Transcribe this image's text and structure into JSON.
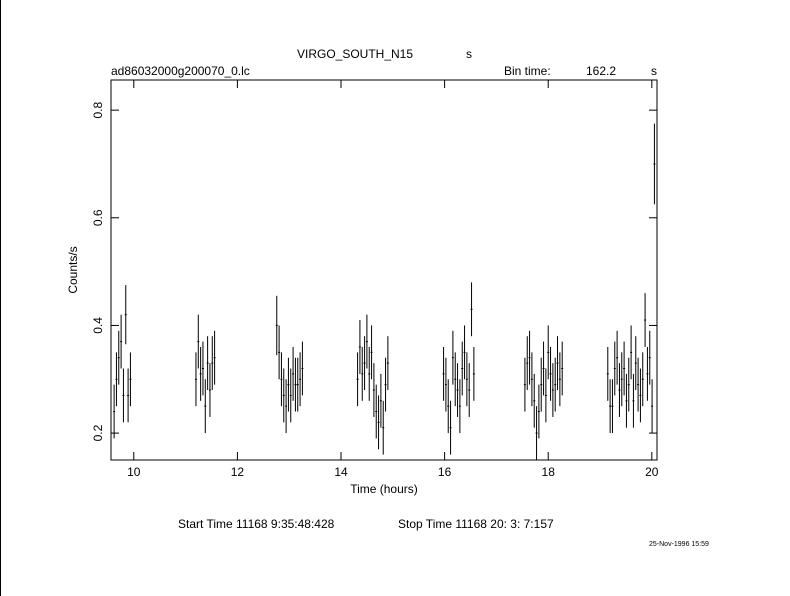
{
  "chart_data": {
    "type": "errorbar",
    "title": "VIRGO_SOUTH_N15",
    "title_unit": "s",
    "file": "ad86032000g200070_0.lc",
    "bin_time_label": "Bin time:",
    "bin_time": 162.2,
    "bin_time_unit": "s",
    "xlabel": "Time (hours)",
    "ylabel": "Counts/s",
    "start_time": "Start Time 11168  9:35:48:428",
    "stop_time": "Stop Time 11168 20: 3: 7:157",
    "date": "25-Nov-1996 15:59",
    "xlim": [
      9.56,
      20.1
    ],
    "ylim": [
      0.15,
      0.856
    ],
    "xticks": [
      10,
      12,
      14,
      16,
      18,
      20
    ],
    "yticks": [
      0.2,
      0.4,
      0.6,
      0.8
    ],
    "series": [
      {
        "color": "#000000",
        "x": [
          9.62,
          9.665,
          9.71,
          9.755,
          9.8,
          9.845,
          9.89,
          9.935,
          11.2,
          11.245,
          11.29,
          11.335,
          11.38,
          11.425,
          11.47,
          11.515,
          11.56,
          12.76,
          12.805,
          12.85,
          12.895,
          12.94,
          12.985,
          13.03,
          13.075,
          13.12,
          13.165,
          13.21,
          13.255,
          14.32,
          14.365,
          14.41,
          14.455,
          14.5,
          14.545,
          14.59,
          14.635,
          14.68,
          14.725,
          14.77,
          14.815,
          14.86,
          14.905,
          15.98,
          16.025,
          16.07,
          16.115,
          16.16,
          16.205,
          16.25,
          16.295,
          16.34,
          16.385,
          16.43,
          16.475,
          16.52,
          16.565,
          17.55,
          17.595,
          17.64,
          17.685,
          17.73,
          17.775,
          17.82,
          17.865,
          17.91,
          17.955,
          18.0,
          18.045,
          18.09,
          18.135,
          18.18,
          18.225,
          18.27,
          19.15,
          19.195,
          19.24,
          19.285,
          19.33,
          19.375,
          19.42,
          19.465,
          19.51,
          19.555,
          19.6,
          19.645,
          19.69,
          19.735,
          19.78,
          19.825,
          19.87,
          19.915,
          19.96,
          20.005,
          20.05
        ],
        "values": [
          0.24,
          0.3,
          0.34,
          0.37,
          0.27,
          0.42,
          0.27,
          0.3,
          0.3,
          0.37,
          0.31,
          0.32,
          0.25,
          0.33,
          0.28,
          0.33,
          0.34,
          0.4,
          0.35,
          0.3,
          0.27,
          0.25,
          0.29,
          0.27,
          0.31,
          0.29,
          0.29,
          0.3,
          0.32,
          0.3,
          0.36,
          0.31,
          0.33,
          0.37,
          0.31,
          0.35,
          0.28,
          0.24,
          0.22,
          0.26,
          0.21,
          0.29,
          0.33,
          0.31,
          0.29,
          0.25,
          0.21,
          0.34,
          0.3,
          0.28,
          0.25,
          0.32,
          0.35,
          0.3,
          0.28,
          0.43,
          0.31,
          0.29,
          0.33,
          0.34,
          0.3,
          0.26,
          0.2,
          0.24,
          0.29,
          0.32,
          0.27,
          0.35,
          0.31,
          0.28,
          0.29,
          0.33,
          0.3,
          0.32,
          0.31,
          0.25,
          0.25,
          0.32,
          0.34,
          0.28,
          0.3,
          0.32,
          0.26,
          0.29,
          0.35,
          0.26,
          0.33,
          0.29,
          0.27,
          0.3,
          0.41,
          0.31,
          0.34,
          0.25,
          0.7
        ],
        "errors": [
          0.05,
          0.05,
          0.05,
          0.05,
          0.05,
          0.055,
          0.05,
          0.05,
          0.05,
          0.05,
          0.05,
          0.05,
          0.05,
          0.05,
          0.05,
          0.05,
          0.05,
          0.055,
          0.05,
          0.05,
          0.05,
          0.05,
          0.05,
          0.05,
          0.05,
          0.05,
          0.05,
          0.05,
          0.05,
          0.05,
          0.05,
          0.05,
          0.05,
          0.05,
          0.05,
          0.05,
          0.05,
          0.05,
          0.05,
          0.05,
          0.05,
          0.05,
          0.05,
          0.05,
          0.05,
          0.05,
          0.05,
          0.05,
          0.05,
          0.05,
          0.05,
          0.05,
          0.05,
          0.05,
          0.05,
          0.05,
          0.05,
          0.05,
          0.05,
          0.05,
          0.05,
          0.05,
          0.05,
          0.05,
          0.05,
          0.05,
          0.05,
          0.05,
          0.05,
          0.05,
          0.05,
          0.05,
          0.05,
          0.05,
          0.05,
          0.05,
          0.05,
          0.05,
          0.05,
          0.05,
          0.05,
          0.05,
          0.05,
          0.05,
          0.05,
          0.05,
          0.05,
          0.05,
          0.05,
          0.05,
          0.05,
          0.05,
          0.05,
          0.05,
          0.075
        ]
      }
    ]
  }
}
